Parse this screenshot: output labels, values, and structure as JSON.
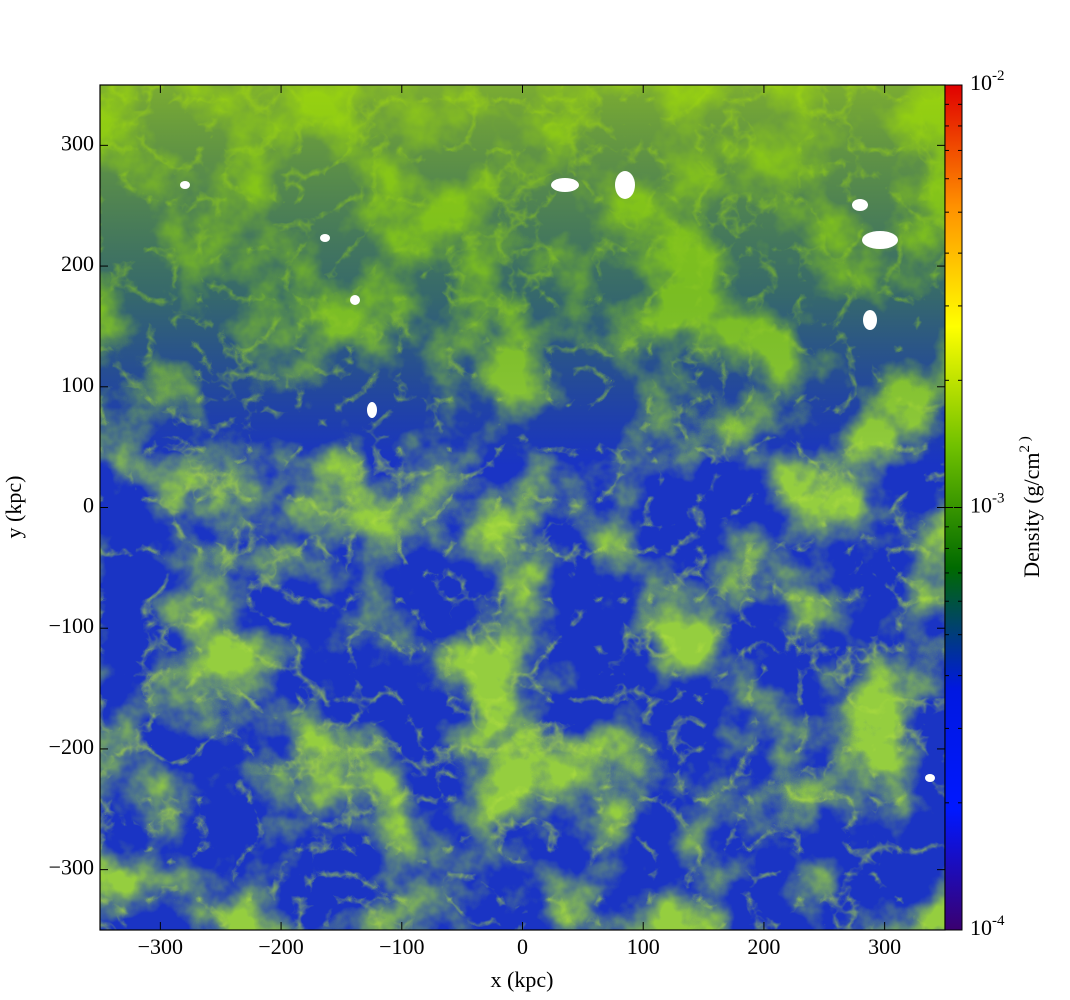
{
  "chart_data": {
    "type": "image",
    "x_label": "x  (kpc)",
    "y_label": "y  (kpc)",
    "xlim": [
      -350,
      350
    ],
    "ylim": [
      -350,
      350
    ],
    "xticks": [
      {
        "value": -300,
        "label": "−300"
      },
      {
        "value": -200,
        "label": "−200"
      },
      {
        "value": -100,
        "label": "−100"
      },
      0,
      100,
      200,
      300
    ],
    "yticks": [
      {
        "value": -300,
        "label": "−300"
      },
      {
        "value": -200,
        "label": "−200"
      },
      {
        "value": -100,
        "label": "−100"
      },
      0,
      100,
      200,
      300
    ],
    "colorbar_label": "Density  (g/cm^2 )",
    "colorbar_log": true,
    "colorbar_lim": [
      0.0001,
      0.01
    ],
    "colorbar_ticks": [
      {
        "value": 0.0001,
        "label": "10^-4"
      },
      {
        "value": 0.001,
        "label": "10^-3"
      },
      {
        "value": 0.01,
        "label": "10^-2"
      }
    ],
    "colorbar_minor_ticks": [
      0.0002,
      0.0003,
      0.0004,
      0.0005,
      0.0006,
      0.0007,
      0.0008,
      0.0009,
      0.002,
      0.003,
      0.004,
      0.005,
      0.006,
      0.007,
      0.008,
      0.009
    ],
    "colormap": [
      "#3a0070",
      "#0018ff",
      "#0018e0",
      "#006a00",
      "#6fc000",
      "#ffff00",
      "#ff9000",
      "#e00000"
    ]
  }
}
